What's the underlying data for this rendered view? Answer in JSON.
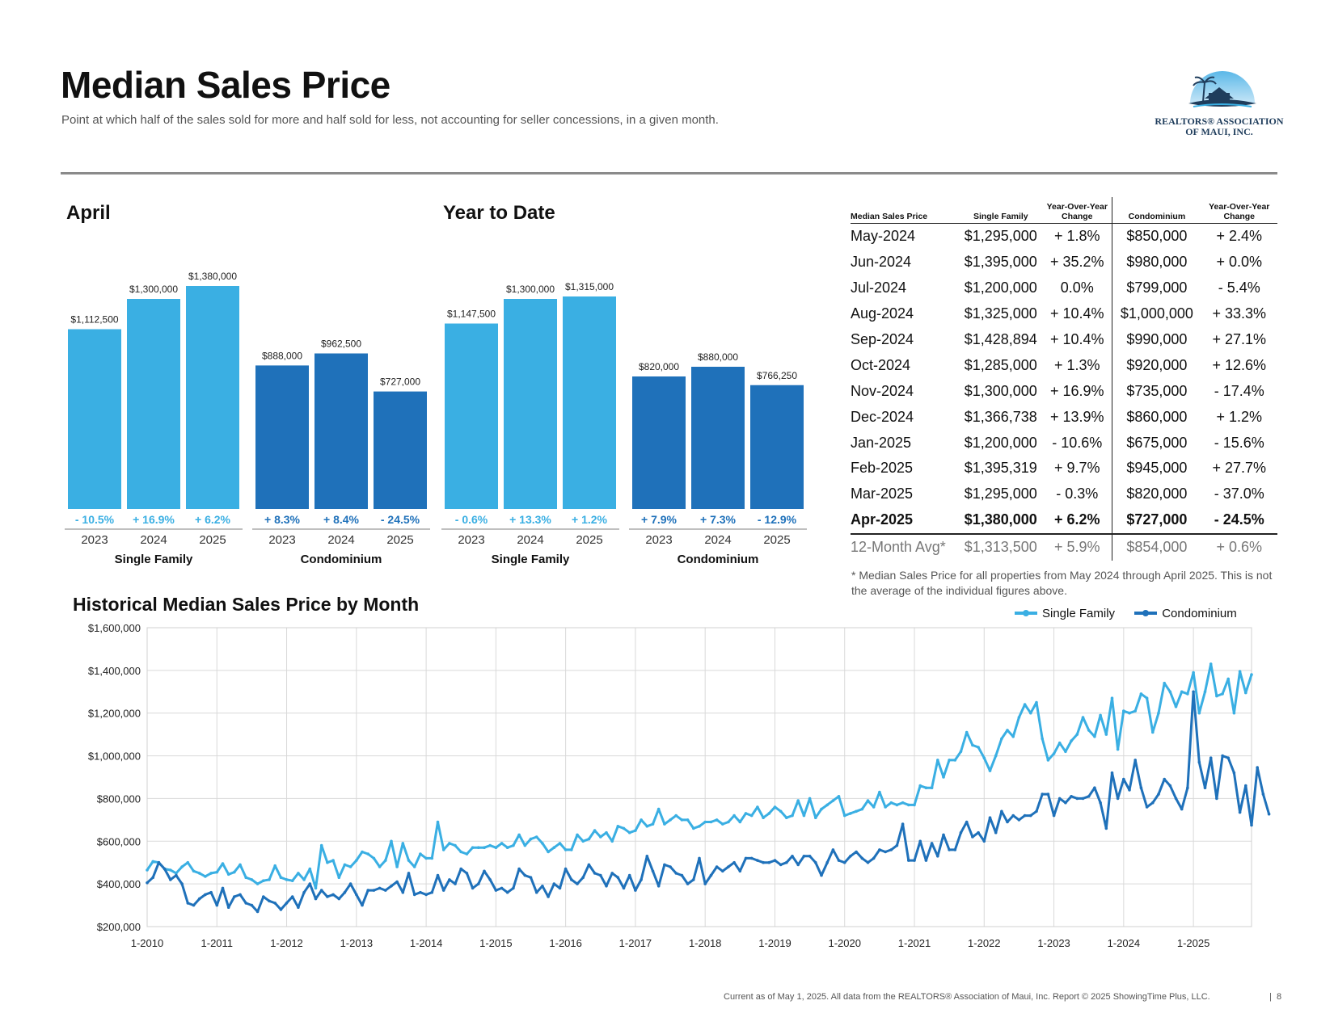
{
  "title": "Median Sales Price",
  "subtitle": "Point at which half of the sales sold for more and half sold for less, not accounting for seller concessions, in a given month.",
  "logo": {
    "line1": "REALTORS® ASSOCIATION",
    "line2": "OF MAUI, INC.",
    "icon": "house-palm-logo"
  },
  "colors": {
    "single_family": "#3aafe3",
    "condominium": "#1f71ba"
  },
  "april": {
    "title": "April",
    "groups": [
      {
        "label": "Single Family",
        "color": "#3aafe3",
        "bars": [
          {
            "year": "2023",
            "value": 1112500,
            "label": "$1,112,500",
            "change": "- 10.5%"
          },
          {
            "year": "2024",
            "value": 1300000,
            "label": "$1,300,000",
            "change": "+ 16.9%"
          },
          {
            "year": "2025",
            "value": 1380000,
            "label": "$1,380,000",
            "change": "+ 6.2%"
          }
        ]
      },
      {
        "label": "Condominium",
        "color": "#1f71ba",
        "bars": [
          {
            "year": "2023",
            "value": 888000,
            "label": "$888,000",
            "change": "+ 8.3%"
          },
          {
            "year": "2024",
            "value": 962500,
            "label": "$962,500",
            "change": "+ 8.4%"
          },
          {
            "year": "2025",
            "value": 727000,
            "label": "$727,000",
            "change": "- 24.5%"
          }
        ]
      }
    ]
  },
  "ytd": {
    "title": "Year to Date",
    "groups": [
      {
        "label": "Single Family",
        "color": "#3aafe3",
        "bars": [
          {
            "year": "2023",
            "value": 1147500,
            "label": "$1,147,500",
            "change": "- 0.6%"
          },
          {
            "year": "2024",
            "value": 1300000,
            "label": "$1,300,000",
            "change": "+ 13.3%"
          },
          {
            "year": "2025",
            "value": 1315000,
            "label": "$1,315,000",
            "change": "+ 1.2%"
          }
        ]
      },
      {
        "label": "Condominium",
        "color": "#1f71ba",
        "bars": [
          {
            "year": "2023",
            "value": 820000,
            "label": "$820,000",
            "change": "+ 7.9%"
          },
          {
            "year": "2024",
            "value": 880000,
            "label": "$880,000",
            "change": "+ 7.3%"
          },
          {
            "year": "2025",
            "value": 766250,
            "label": "$766,250",
            "change": "- 12.9%"
          }
        ]
      }
    ]
  },
  "table": {
    "headers": [
      "Median Sales Price",
      "Single Family",
      "Year-Over-Year Change",
      "Condominium",
      "Year-Over-Year Change"
    ],
    "rows": [
      [
        "May-2024",
        "$1,295,000",
        "+ 1.8%",
        "$850,000",
        "+ 2.4%"
      ],
      [
        "Jun-2024",
        "$1,395,000",
        "+ 35.2%",
        "$980,000",
        "+ 0.0%"
      ],
      [
        "Jul-2024",
        "$1,200,000",
        "0.0%",
        "$799,000",
        "- 5.4%"
      ],
      [
        "Aug-2024",
        "$1,325,000",
        "+ 10.4%",
        "$1,000,000",
        "+ 33.3%"
      ],
      [
        "Sep-2024",
        "$1,428,894",
        "+ 10.4%",
        "$990,000",
        "+ 27.1%"
      ],
      [
        "Oct-2024",
        "$1,285,000",
        "+ 1.3%",
        "$920,000",
        "+ 12.6%"
      ],
      [
        "Nov-2024",
        "$1,300,000",
        "+ 16.9%",
        "$735,000",
        "- 17.4%"
      ],
      [
        "Dec-2024",
        "$1,366,738",
        "+ 13.9%",
        "$860,000",
        "+ 1.2%"
      ],
      [
        "Jan-2025",
        "$1,200,000",
        "- 10.6%",
        "$675,000",
        "- 15.6%"
      ],
      [
        "Feb-2025",
        "$1,395,319",
        "+ 9.7%",
        "$945,000",
        "+ 27.7%"
      ],
      [
        "Mar-2025",
        "$1,295,000",
        "- 0.3%",
        "$820,000",
        "- 37.0%"
      ],
      [
        "Apr-2025",
        "$1,380,000",
        "+ 6.2%",
        "$727,000",
        "- 24.5%"
      ]
    ],
    "avg": [
      "12-Month Avg*",
      "$1,313,500",
      "+ 5.9%",
      "$854,000",
      "+ 0.6%"
    ]
  },
  "footnote": "* Median Sales Price for all properties from May 2024 through April 2025. This is not the average of the individual figures above.",
  "footer": "Current as of May 1, 2025. All data from the REALTORS® Association of Maui, Inc. Report © 2025 ShowingTime Plus, LLC.",
  "page_number": "8",
  "chart_data": [
    {
      "type": "bar",
      "title": "April",
      "categories": [
        "2023",
        "2024",
        "2025"
      ],
      "series": [
        {
          "name": "Single Family",
          "values": [
            1112500,
            1300000,
            1380000
          ]
        },
        {
          "name": "Condominium",
          "values": [
            888000,
            962500,
            727000
          ]
        }
      ]
    },
    {
      "type": "bar",
      "title": "Year to Date",
      "categories": [
        "2023",
        "2024",
        "2025"
      ],
      "series": [
        {
          "name": "Single Family",
          "values": [
            1147500,
            1300000,
            1315000
          ]
        },
        {
          "name": "Condominium",
          "values": [
            820000,
            880000,
            766250
          ]
        }
      ]
    },
    {
      "type": "line",
      "title": "Historical Median Sales Price by Month",
      "x_start": "1-2010",
      "x_end": "4-2025",
      "x_ticks": [
        "1-2010",
        "1-2011",
        "1-2012",
        "1-2013",
        "1-2014",
        "1-2015",
        "1-2016",
        "1-2017",
        "1-2018",
        "1-2019",
        "1-2020",
        "1-2021",
        "1-2022",
        "1-2023",
        "1-2024",
        "1-2025"
      ],
      "y_ticks": [
        "$200,000",
        "$400,000",
        "$600,000",
        "$800,000",
        "$1,000,000",
        "$1,200,000",
        "$1,400,000",
        "$1,600,000"
      ],
      "ylim": [
        200000,
        1600000
      ],
      "legend": "top-right",
      "grid": true,
      "series": [
        {
          "name": "Single Family",
          "values": [
            465000,
            505000,
            500000,
            470000,
            465000,
            450000,
            480000,
            500000,
            460000,
            450000,
            435000,
            450000,
            455000,
            495000,
            445000,
            455000,
            490000,
            430000,
            420000,
            400000,
            415000,
            420000,
            485000,
            430000,
            420000,
            415000,
            450000,
            420000,
            470000,
            380000,
            580000,
            500000,
            510000,
            430000,
            490000,
            480000,
            510000,
            550000,
            540000,
            520000,
            480000,
            510000,
            600000,
            480000,
            590000,
            510000,
            480000,
            540000,
            520000,
            520000,
            690000,
            560000,
            590000,
            580000,
            550000,
            540000,
            570000,
            570000,
            570000,
            580000,
            570000,
            590000,
            570000,
            580000,
            630000,
            580000,
            610000,
            620000,
            590000,
            550000,
            570000,
            590000,
            560000,
            560000,
            630000,
            600000,
            610000,
            650000,
            620000,
            640000,
            600000,
            670000,
            660000,
            640000,
            650000,
            700000,
            670000,
            680000,
            750000,
            680000,
            700000,
            720000,
            700000,
            700000,
            660000,
            670000,
            690000,
            690000,
            700000,
            680000,
            690000,
            720000,
            690000,
            730000,
            720000,
            760000,
            710000,
            730000,
            760000,
            740000,
            710000,
            720000,
            790000,
            720000,
            800000,
            710000,
            750000,
            770000,
            790000,
            810000,
            720000,
            730000,
            740000,
            750000,
            790000,
            760000,
            830000,
            760000,
            780000,
            770000,
            780000,
            770000,
            770000,
            860000,
            850000,
            850000,
            980000,
            900000,
            980000,
            980000,
            1020000,
            1110000,
            1050000,
            1040000,
            990000,
            930000,
            1000000,
            1080000,
            1120000,
            1090000,
            1180000,
            1240000,
            1200000,
            1250000,
            1080000,
            980000,
            1010000,
            1060000,
            1020000,
            1070000,
            1100000,
            1180000,
            1120000,
            1090000,
            1190000,
            1100000,
            1270000,
            1030000,
            1210000,
            1200000,
            1210000,
            1290000,
            1270000,
            1110000,
            1200000,
            1340000,
            1300000,
            1230000,
            1300000,
            1290000,
            1390000,
            1200000,
            1300000,
            1430000,
            1280000,
            1290000,
            1360000,
            1200000,
            1395000,
            1295000,
            1380000
          ]
        },
        {
          "name": "Condominium",
          "values": [
            405000,
            430000,
            500000,
            470000,
            420000,
            440000,
            400000,
            310000,
            300000,
            330000,
            350000,
            360000,
            300000,
            380000,
            290000,
            340000,
            350000,
            310000,
            300000,
            270000,
            340000,
            320000,
            310000,
            280000,
            310000,
            340000,
            290000,
            360000,
            400000,
            330000,
            370000,
            340000,
            350000,
            330000,
            360000,
            400000,
            350000,
            300000,
            370000,
            370000,
            380000,
            370000,
            390000,
            410000,
            360000,
            450000,
            350000,
            360000,
            350000,
            360000,
            440000,
            370000,
            420000,
            400000,
            470000,
            450000,
            380000,
            400000,
            460000,
            420000,
            370000,
            380000,
            360000,
            380000,
            470000,
            440000,
            430000,
            360000,
            390000,
            340000,
            400000,
            380000,
            470000,
            420000,
            400000,
            430000,
            490000,
            450000,
            440000,
            390000,
            450000,
            430000,
            380000,
            440000,
            370000,
            420000,
            530000,
            460000,
            390000,
            490000,
            480000,
            450000,
            440000,
            400000,
            420000,
            520000,
            400000,
            440000,
            480000,
            460000,
            480000,
            500000,
            460000,
            520000,
            520000,
            510000,
            500000,
            500000,
            510000,
            490000,
            500000,
            530000,
            490000,
            530000,
            530000,
            500000,
            440000,
            500000,
            560000,
            510000,
            500000,
            530000,
            550000,
            520000,
            500000,
            520000,
            560000,
            550000,
            560000,
            580000,
            680000,
            510000,
            510000,
            600000,
            510000,
            590000,
            530000,
            630000,
            560000,
            560000,
            640000,
            690000,
            620000,
            640000,
            600000,
            710000,
            640000,
            740000,
            690000,
            720000,
            700000,
            720000,
            720000,
            740000,
            820000,
            820000,
            720000,
            800000,
            780000,
            810000,
            800000,
            800000,
            810000,
            850000,
            780000,
            660000,
            920000,
            800000,
            890000,
            840000,
            980000,
            850000,
            760000,
            780000,
            820000,
            890000,
            860000,
            800000,
            750000,
            850000,
            1300000,
            970000,
            850000,
            990000,
            800000,
            1000000,
            990000,
            920000,
            735000,
            860000,
            675000,
            945000,
            820000,
            727000
          ]
        }
      ]
    }
  ],
  "hist": {
    "title": "Historical Median Sales Price by Month"
  }
}
